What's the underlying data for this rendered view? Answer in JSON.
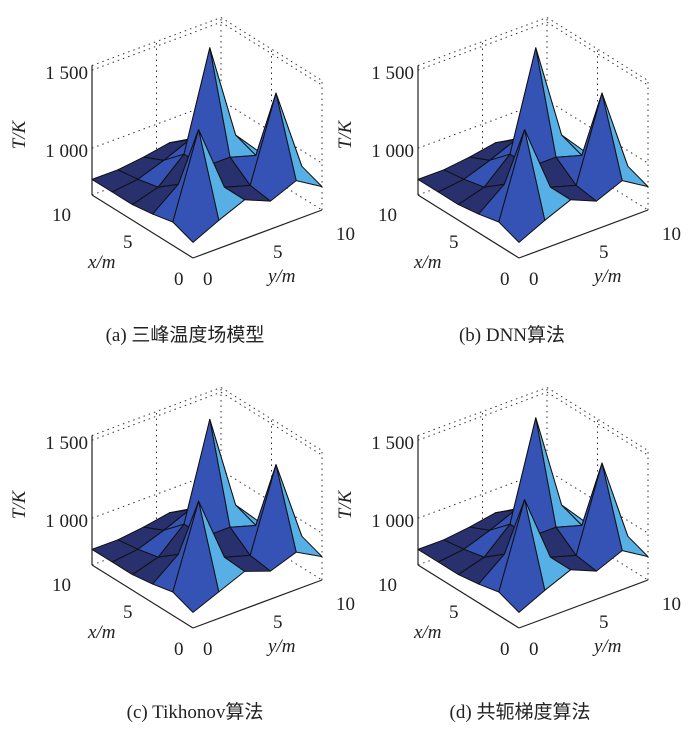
{
  "chart_data": [
    {
      "type": "surface",
      "caption": "(a) 三峰温度场模型",
      "xlabel": "x/m",
      "ylabel": "y/m",
      "zlabel": "T/K",
      "x": [
        0,
        2,
        4,
        6,
        8,
        10
      ],
      "y": [
        0,
        2,
        4,
        6,
        8,
        10
      ],
      "xticks": [
        "0",
        "5",
        "10"
      ],
      "yticks": [
        "0",
        "5",
        "10"
      ],
      "zticks": [
        "1 000",
        "1 500"
      ],
      "zlim": [
        700,
        1530
      ],
      "z": [
        [
          800,
          880,
          950,
          880,
          950,
          850
        ],
        [
          850,
          1380,
          950,
          900,
          1430,
          900
        ],
        [
          820,
          950,
          1000,
          1000,
          950,
          850
        ],
        [
          800,
          850,
          1000,
          1620,
          1000,
          820
        ],
        [
          800,
          820,
          880,
          950,
          880,
          800
        ],
        [
          800,
          800,
          820,
          850,
          820,
          800
        ]
      ]
    },
    {
      "type": "surface",
      "caption": "(b) DNN算法",
      "xlabel": "x/m",
      "ylabel": "y/m",
      "zlabel": "T/K",
      "x": [
        0,
        2,
        4,
        6,
        8,
        10
      ],
      "y": [
        0,
        2,
        4,
        6,
        8,
        10
      ],
      "xticks": [
        "0",
        "5",
        "10"
      ],
      "yticks": [
        "0",
        "5",
        "10"
      ],
      "zticks": [
        "1 000",
        "1 500"
      ],
      "zlim": [
        700,
        1530
      ],
      "z": [
        [
          800,
          880,
          950,
          880,
          950,
          850
        ],
        [
          850,
          1380,
          950,
          900,
          1430,
          900
        ],
        [
          820,
          950,
          1000,
          1000,
          950,
          850
        ],
        [
          800,
          850,
          1000,
          1620,
          1000,
          820
        ],
        [
          800,
          820,
          880,
          950,
          880,
          800
        ],
        [
          800,
          800,
          820,
          850,
          820,
          800
        ]
      ]
    },
    {
      "type": "surface",
      "caption": "(c) Tikhonov算法",
      "xlabel": "x/m",
      "ylabel": "y/m",
      "zlabel": "T/K",
      "x": [
        0,
        2,
        4,
        6,
        8,
        10
      ],
      "y": [
        0,
        2,
        4,
        6,
        8,
        10
      ],
      "xticks": [
        "0",
        "5",
        "10"
      ],
      "yticks": [
        "0",
        "5",
        "10"
      ],
      "zticks": [
        "1 000",
        "1 500"
      ],
      "zlim": [
        700,
        1530
      ],
      "z": [
        [
          800,
          870,
          940,
          880,
          940,
          850
        ],
        [
          850,
          1370,
          950,
          900,
          1420,
          900
        ],
        [
          820,
          950,
          1000,
          1000,
          950,
          850
        ],
        [
          800,
          850,
          1000,
          1610,
          1000,
          820
        ],
        [
          800,
          820,
          880,
          950,
          880,
          800
        ],
        [
          800,
          800,
          820,
          850,
          820,
          800
        ]
      ]
    },
    {
      "type": "surface",
      "caption": "(d) 共轭梯度算法",
      "xlabel": "x/m",
      "ylabel": "y/m",
      "zlabel": "T/K",
      "x": [
        0,
        2,
        4,
        6,
        8,
        10
      ],
      "y": [
        0,
        2,
        4,
        6,
        8,
        10
      ],
      "xticks": [
        "0",
        "5",
        "10"
      ],
      "yticks": [
        "0",
        "5",
        "10"
      ],
      "zticks": [
        "1 000",
        "1 500"
      ],
      "zlim": [
        700,
        1530
      ],
      "z": [
        [
          800,
          880,
          950,
          880,
          950,
          850
        ],
        [
          850,
          1380,
          950,
          900,
          1430,
          900
        ],
        [
          820,
          950,
          1000,
          1000,
          950,
          850
        ],
        [
          800,
          850,
          1000,
          1620,
          1000,
          820
        ],
        [
          800,
          820,
          880,
          950,
          880,
          800
        ],
        [
          800,
          800,
          820,
          850,
          820,
          800
        ]
      ]
    }
  ],
  "colors": {
    "flat": "#28306e",
    "front": "#3552b5",
    "side": "#56b0e6",
    "edge": "#111"
  }
}
